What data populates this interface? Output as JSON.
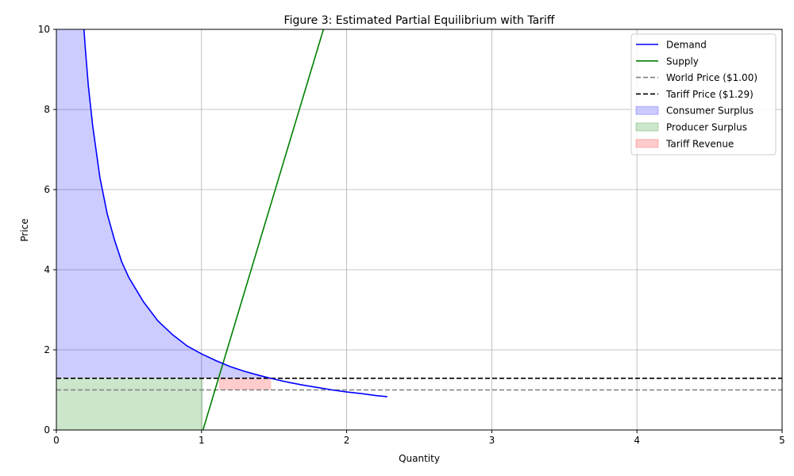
{
  "chart_data": {
    "type": "line",
    "title": "Figure 3: Estimated Partial Equilibrium with Tariff",
    "xlabel": "Quantity",
    "ylabel": "Price",
    "xlim": [
      0,
      5
    ],
    "ylim": [
      0,
      10
    ],
    "xticks": [
      "0",
      "1",
      "2",
      "3",
      "4",
      "5"
    ],
    "yticks": [
      "0",
      "2",
      "4",
      "6",
      "8",
      "10"
    ],
    "grid": true,
    "legend_position": "top-right",
    "demand": {
      "name": "Demand",
      "color": "#0000ff",
      "points": [
        [
          0.19,
          10.0
        ],
        [
          0.2,
          9.5
        ],
        [
          0.22,
          8.6
        ],
        [
          0.25,
          7.6
        ],
        [
          0.3,
          6.3
        ],
        [
          0.35,
          5.4
        ],
        [
          0.4,
          4.75
        ],
        [
          0.45,
          4.2
        ],
        [
          0.5,
          3.8
        ],
        [
          0.6,
          3.2
        ],
        [
          0.7,
          2.72
        ],
        [
          0.8,
          2.38
        ],
        [
          0.9,
          2.1
        ],
        [
          1.0,
          1.9
        ],
        [
          1.1,
          1.73
        ],
        [
          1.2,
          1.58
        ],
        [
          1.3,
          1.46
        ],
        [
          1.4,
          1.36
        ],
        [
          1.5,
          1.27
        ],
        [
          1.6,
          1.19
        ],
        [
          1.7,
          1.12
        ],
        [
          1.8,
          1.06
        ],
        [
          1.9,
          1.0
        ],
        [
          2.0,
          0.95
        ],
        [
          2.1,
          0.91
        ],
        [
          2.2,
          0.86
        ],
        [
          2.28,
          0.83
        ]
      ]
    },
    "supply": {
      "name": "Supply",
      "color": "#008000",
      "points": [
        [
          1.01,
          0.0
        ],
        [
          1.84,
          10.0
        ]
      ]
    },
    "world_price": {
      "name": "World Price ($1.00)",
      "value": 1.0,
      "color": "#808080"
    },
    "tariff_price": {
      "name": "Tariff Price ($1.29)",
      "value": 1.29,
      "color": "#000000"
    },
    "areas": [
      {
        "name": "Consumer Surplus",
        "color": "#0000ff"
      },
      {
        "name": "Producer Surplus",
        "color": "#008000"
      },
      {
        "name": "Tariff Revenue",
        "color": "#ff0000"
      }
    ],
    "producer_surplus_quantity": 1.01,
    "tariff_revenue_quantity_range": [
      1.12,
      1.48
    ]
  }
}
